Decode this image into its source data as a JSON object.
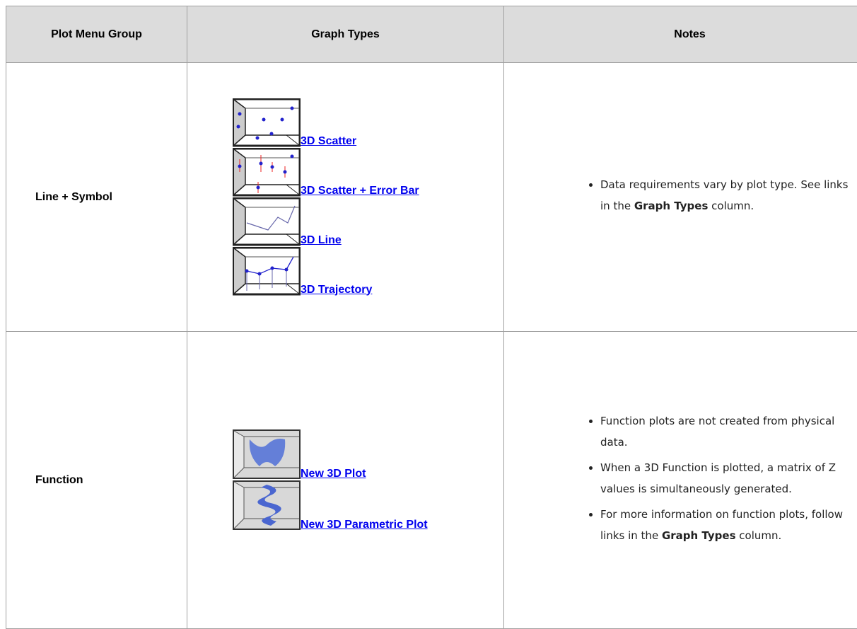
{
  "table": {
    "headers": [
      "Plot Menu Group",
      "Graph Types",
      "Notes"
    ],
    "rows": [
      {
        "group": "Line + Symbol",
        "graph_types": [
          "3D Scatter",
          "3D Scatter + Error Bar",
          "3D Line",
          "3D Trajectory"
        ],
        "notes": [
          [
            {
              "text": "Data requirements vary by plot type. See links in the ",
              "bold": false
            },
            {
              "text": "Graph Types",
              "bold": true
            },
            {
              "text": " column.",
              "bold": false
            }
          ]
        ]
      },
      {
        "group": "Function",
        "graph_types": [
          "New 3D Plot",
          "New 3D Parametric Plot"
        ],
        "notes": [
          [
            {
              "text": "Function plots are not created from physical data.",
              "bold": false
            }
          ],
          [
            {
              "text": "When a 3D Function is plotted, a matrix of Z values is simultaneously generated.",
              "bold": false
            }
          ],
          [
            {
              "text": "For more information on function plots, follow links in the ",
              "bold": false
            },
            {
              "text": "Graph Types",
              "bold": true
            },
            {
              "text": " column.",
              "bold": false
            }
          ]
        ]
      }
    ]
  }
}
